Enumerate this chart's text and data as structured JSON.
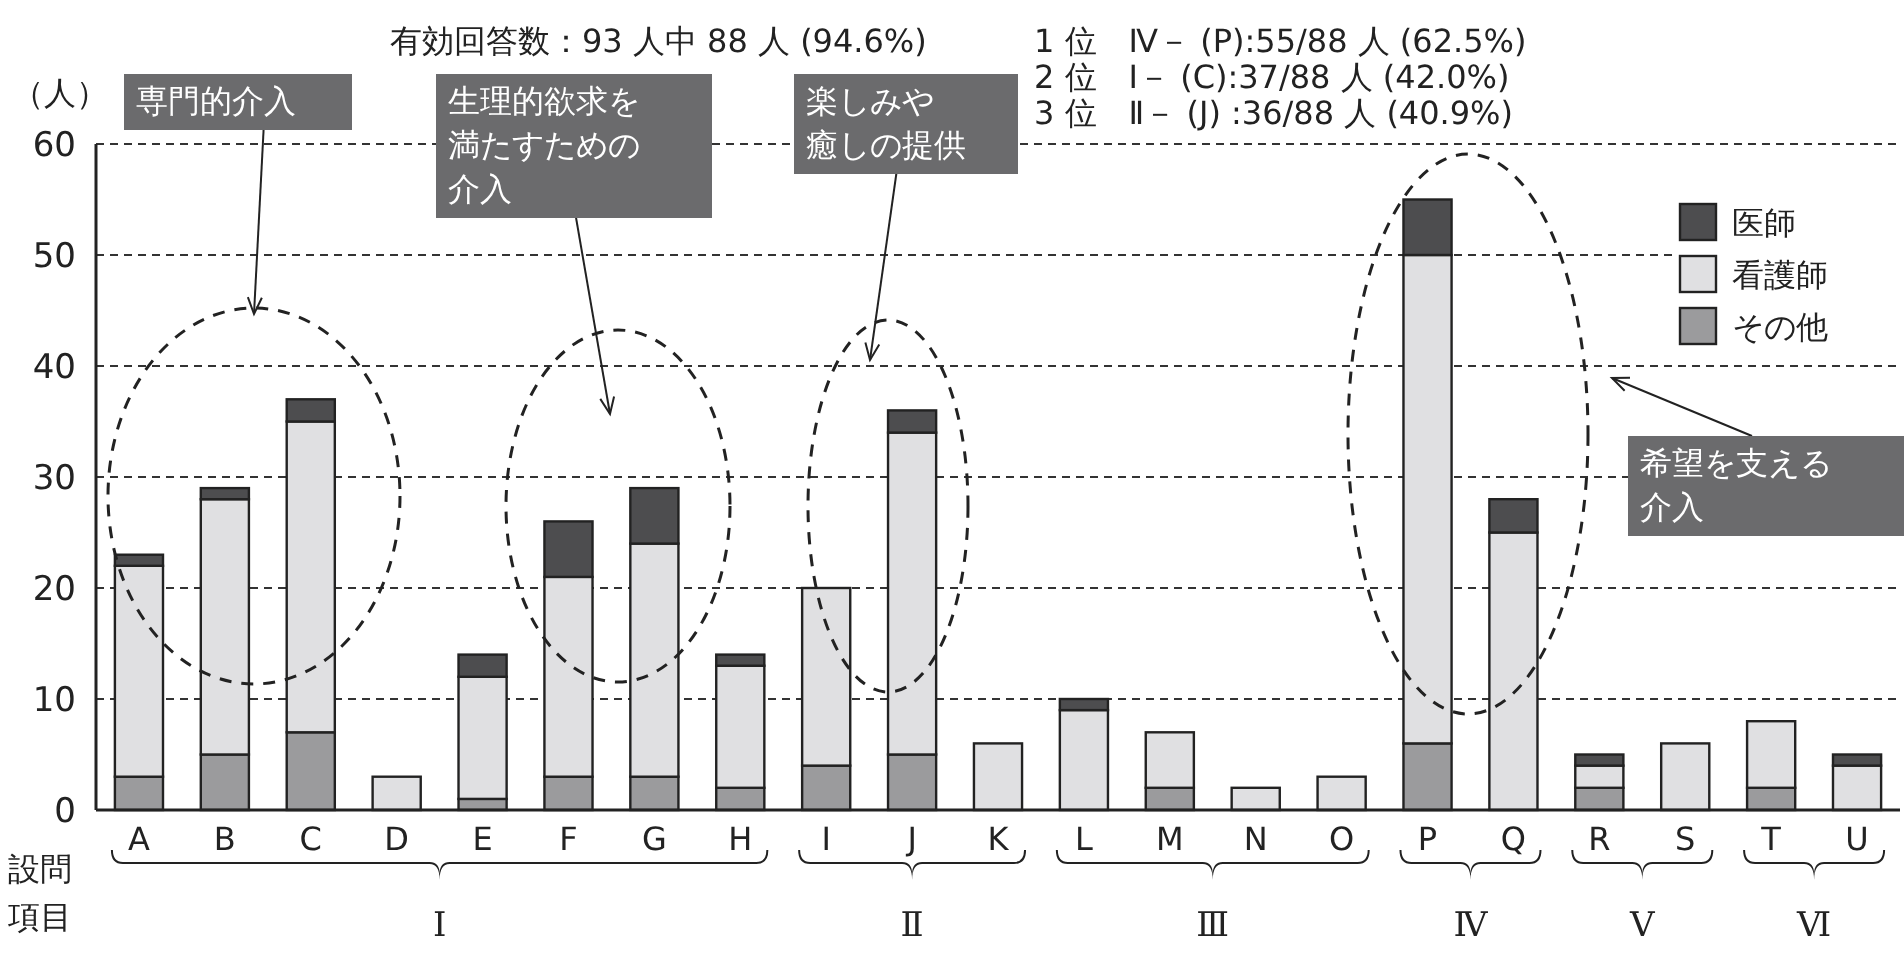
{
  "chart_data": {
    "type": "bar",
    "stacked": true,
    "ylabel": "（人）",
    "xlabel": "設問項目",
    "categories": [
      "A",
      "B",
      "C",
      "D",
      "E",
      "F",
      "G",
      "H",
      "I",
      "J",
      "K",
      "L",
      "M",
      "N",
      "O",
      "P",
      "Q",
      "R",
      "S",
      "T",
      "U"
    ],
    "series": [
      {
        "name": "その他",
        "color": "#9b9b9d",
        "values": [
          3,
          5,
          7,
          0,
          1,
          3,
          3,
          2,
          4,
          5,
          0,
          0,
          2,
          0,
          0,
          6,
          0,
          2,
          0,
          2,
          0
        ]
      },
      {
        "name": "看護師",
        "color": "#e0e0e2",
        "values": [
          19,
          23,
          28,
          3,
          11,
          18,
          21,
          11,
          16,
          29,
          6,
          9,
          5,
          2,
          3,
          44,
          25,
          2,
          6,
          6,
          4
        ]
      },
      {
        "name": "医師",
        "color": "#4d4d4f",
        "values": [
          1,
          1,
          2,
          0,
          2,
          5,
          5,
          1,
          0,
          2,
          0,
          1,
          0,
          0,
          0,
          5,
          3,
          1,
          0,
          0,
          1
        ]
      }
    ],
    "ylim": [
      0,
      60
    ],
    "yticks": [
      0,
      10,
      20,
      30,
      40,
      50,
      60
    ],
    "grid": "y",
    "legend": "top right",
    "annotations": [
      "有効回答数：93 人中 88 人 (94.6%)",
      "1 位　Ⅳ－ (P):55/88 人 (62.5%)",
      "2 位　Ⅰ－ (C):37/88 人 (42.0%)",
      "3 位　Ⅱ－ (J) :36/88 人 (40.9%)",
      "専門的介入",
      "生理的欲求を満たすための介入",
      "楽しみや癒しの提供",
      "希望を支える介入",
      "Ⅰ",
      "Ⅱ",
      "Ⅲ",
      "Ⅳ",
      "Ⅴ",
      "Ⅵ"
    ]
  }
}
